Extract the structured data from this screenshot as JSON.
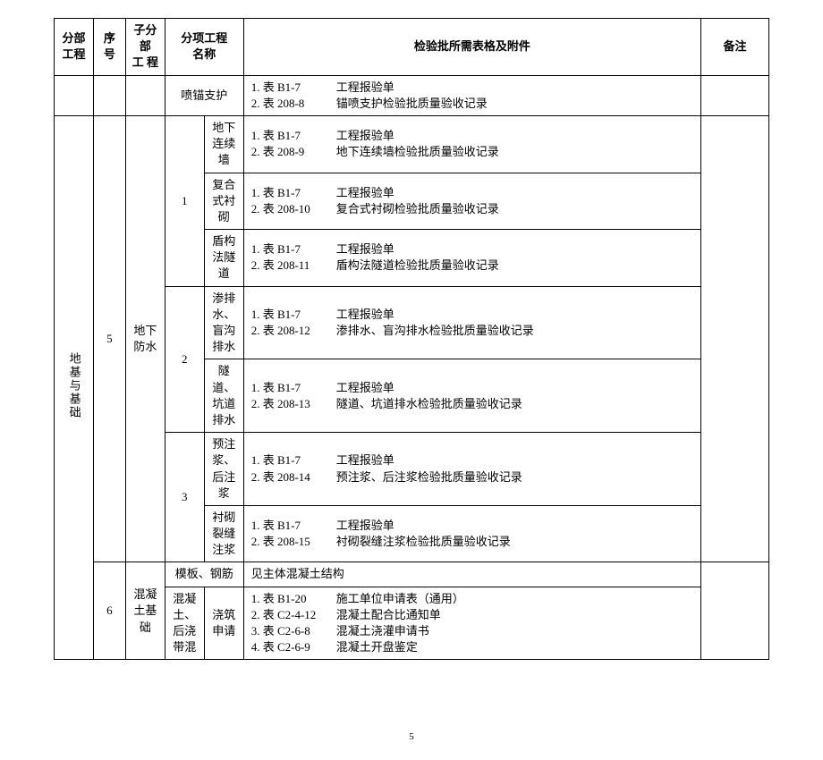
{
  "headers": {
    "fenbu": "分部\n工程",
    "xuhao": "序号",
    "zifenbu": "子分部\n工 程",
    "fenxiang": "分项工程\n名称",
    "forms": "检验批所需表格及附件",
    "remark": "备注"
  },
  "fenbu_label": "地基与基础",
  "page_number": "5",
  "r0": {
    "name": "喷锚支护",
    "forms": [
      {
        "code": "1. 表 B1-7",
        "name": "工程报验单"
      },
      {
        "code": "2. 表 208-8",
        "name": "锚喷支护检验批质量验收记录"
      }
    ]
  },
  "seq5": "5",
  "zfb5": "地下防水",
  "g1": {
    "num": "1",
    "rowA": {
      "name": "地下连续墙",
      "forms": [
        {
          "code": "1. 表 B1-7",
          "name": "工程报验单"
        },
        {
          "code": "2. 表 208-9",
          "name": "地下连续墙检验批质量验收记录"
        }
      ]
    },
    "rowB": {
      "name": "复合式衬砌",
      "forms": [
        {
          "code": "1. 表 B1-7",
          "name": "工程报验单"
        },
        {
          "code": "2. 表 208-10",
          "name": "复合式衬砌检验批质量验收记录"
        }
      ]
    },
    "rowC": {
      "name": "盾构法隧道",
      "forms": [
        {
          "code": "1. 表 B1-7",
          "name": "工程报验单"
        },
        {
          "code": "2. 表 208-11",
          "name": "盾构法隧道检验批质量验收记录"
        }
      ]
    }
  },
  "g2": {
    "num": "2",
    "rowA": {
      "name": "渗排水、盲沟排水",
      "forms": [
        {
          "code": "1. 表 B1-7",
          "name": "工程报验单"
        },
        {
          "code": "2. 表 208-12",
          "name": "渗排水、盲沟排水检验批质量验收记录"
        }
      ]
    },
    "rowB": {
      "name": "隧道、坑道排水",
      "forms": [
        {
          "code": "1. 表 B1-7",
          "name": "工程报验单"
        },
        {
          "code": "2. 表 208-13",
          "name": "隧道、坑道排水检验批质量验收记录"
        }
      ]
    }
  },
  "g3": {
    "num": "3",
    "rowA": {
      "name": "预注浆、后注浆",
      "forms": [
        {
          "code": "1. 表 B1-7",
          "name": "工程报验单"
        },
        {
          "code": "2. 表 208-14",
          "name": "预注浆、后注浆检验批质量验收记录"
        }
      ]
    },
    "rowB": {
      "name": "衬砌裂缝　注浆",
      "forms": [
        {
          "code": "1. 表 B1-7",
          "name": "工程报验单"
        },
        {
          "code": "2. 表 208-15",
          "name": "衬砌裂缝注浆检验批质量验收记录"
        }
      ]
    }
  },
  "seq6": "6",
  "zfb6": "混凝土基础",
  "rMB": {
    "name": "模板、钢筋",
    "forms_text": "见主体混凝土结构"
  },
  "rHNT": {
    "name1": "混凝土、后浇带混",
    "name2": "浇筑申请",
    "forms": [
      {
        "code": "1. 表 B1-20",
        "name": "施工单位申请表（通用）"
      },
      {
        "code": "2. 表 C2-4-12",
        "name": "混凝土配合比通知单"
      },
      {
        "code": "3. 表 C2-6-8",
        "name": "混凝土浇灌申请书"
      },
      {
        "code": "4. 表 C2-6-9",
        "name": "混凝土开盘鉴定"
      }
    ]
  }
}
